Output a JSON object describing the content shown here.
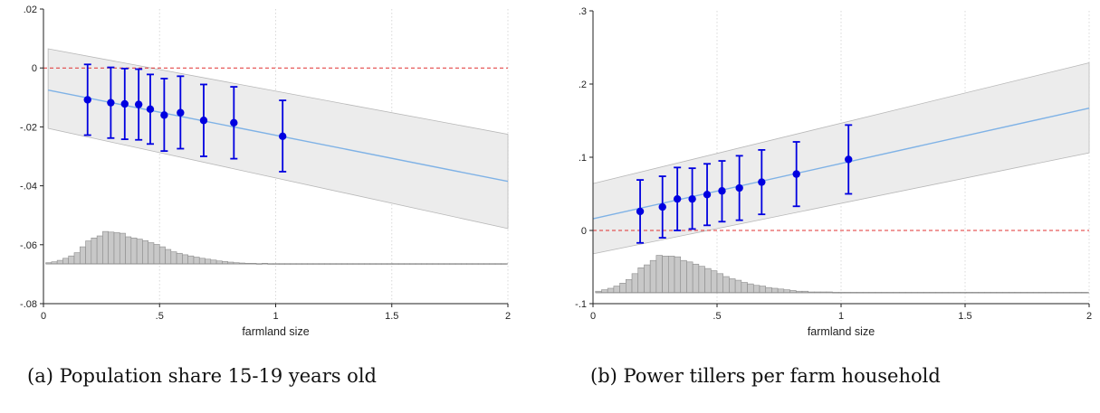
{
  "captions": [
    "(a) Population share 15-19 years old",
    "(b) Power tillers per farm household"
  ],
  "chart_data": [
    {
      "type": "scatter",
      "caption": "(a) Population share 15-19 years old",
      "xlabel": "farmland size",
      "ylabel": "",
      "xlim": [
        0,
        2
      ],
      "ylim": [
        -0.08,
        0.02
      ],
      "xticks": [
        0,
        0.5,
        1,
        1.5,
        2
      ],
      "xtick_labels": [
        "0",
        ".5",
        "1",
        "1.5",
        "2"
      ],
      "yticks": [
        -0.08,
        -0.06,
        -0.04,
        -0.02,
        0,
        0.02
      ],
      "ytick_labels": [
        "-.08",
        "-.06",
        "-.04",
        "-.02",
        "0",
        ".02"
      ],
      "reference_line_y": 0,
      "fit_line": {
        "x": [
          0.02,
          2.0
        ],
        "y": [
          -0.0075,
          -0.0385
        ]
      },
      "confidence_band": {
        "x": [
          0.02,
          2.0
        ],
        "lower": [
          -0.0205,
          -0.0545
        ],
        "upper": [
          0.0065,
          -0.0225
        ]
      },
      "points": [
        {
          "x": 0.19,
          "y": -0.0108,
          "lo": -0.0228,
          "hi": 0.0012
        },
        {
          "x": 0.29,
          "y": -0.0118,
          "lo": -0.0238,
          "hi": 0.0002
        },
        {
          "x": 0.35,
          "y": -0.0122,
          "lo": -0.0242,
          "hi": -0.0002
        },
        {
          "x": 0.41,
          "y": -0.0124,
          "lo": -0.0244,
          "hi": -0.0004
        },
        {
          "x": 0.46,
          "y": -0.014,
          "lo": -0.0258,
          "hi": -0.0022
        },
        {
          "x": 0.52,
          "y": -0.016,
          "lo": -0.0282,
          "hi": -0.0036
        },
        {
          "x": 0.59,
          "y": -0.0152,
          "lo": -0.0274,
          "hi": -0.0028
        },
        {
          "x": 0.69,
          "y": -0.0178,
          "lo": -0.03,
          "hi": -0.0056
        },
        {
          "x": 0.82,
          "y": -0.0186,
          "lo": -0.0308,
          "hi": -0.0064
        },
        {
          "x": 1.03,
          "y": -0.0232,
          "lo": -0.0352,
          "hi": -0.011
        }
      ],
      "histogram": {
        "baseline": -0.0665,
        "bin_start": 0.01,
        "bin_width": 0.0245,
        "heights": [
          0.0004,
          0.0007,
          0.0012,
          0.0019,
          0.0027,
          0.0038,
          0.0058,
          0.0078,
          0.0088,
          0.0095,
          0.011,
          0.0108,
          0.0106,
          0.0104,
          0.0092,
          0.0088,
          0.0084,
          0.0079,
          0.0072,
          0.0066,
          0.0058,
          0.0049,
          0.0041,
          0.0036,
          0.0031,
          0.0027,
          0.0023,
          0.0019,
          0.0016,
          0.0013,
          0.001,
          0.0008,
          0.0006,
          0.0004,
          0.0003,
          0.0002,
          0.0002,
          0.0001,
          0.0002,
          0.0001,
          0.0001,
          0.0001,
          0.0001,
          0.0001,
          0.0001,
          0.0001,
          0.0001,
          0.0001,
          0.0001,
          0.0001,
          0.0001,
          0.0001,
          0.0001,
          0.0001,
          0.0001,
          0.0001,
          0.0001,
          0.0001,
          0.0001,
          0.0001,
          0.0001,
          0.0001,
          0.0001,
          0.0001,
          0.0001,
          0.0001,
          0.0001,
          0.0001,
          0.0001,
          0.0001,
          0.0001,
          0.0001,
          0.0001,
          0.0001,
          0.0001,
          0.0001,
          0.0001,
          0.0001,
          0.0001,
          0.0001,
          0.0001
        ]
      },
      "colors": {
        "points": "#0000e0",
        "fit": "#7fb2e6",
        "band": "#ececec",
        "reference": "#e03030",
        "hist": "#c8c8c8"
      }
    },
    {
      "type": "scatter",
      "caption": "(b) Power tillers per farm household",
      "xlabel": "farmland size",
      "ylabel": "",
      "xlim": [
        0,
        2
      ],
      "ylim": [
        -0.1,
        0.3
      ],
      "xticks": [
        0,
        0.5,
        1,
        1.5,
        2
      ],
      "xtick_labels": [
        "0",
        ".5",
        "1",
        "1.5",
        "2"
      ],
      "yticks": [
        -0.1,
        0,
        0.1,
        0.2,
        0.3
      ],
      "ytick_labels": [
        "-.1",
        "0",
        ".1",
        ".2",
        ".3"
      ],
      "reference_line_y": 0,
      "fit_line": {
        "x": [
          0.0,
          2.0
        ],
        "y": [
          0.016,
          0.167
        ]
      },
      "confidence_band": {
        "x": [
          0.0,
          2.0
        ],
        "lower": [
          -0.032,
          0.106
        ],
        "upper": [
          0.064,
          0.229
        ]
      },
      "points": [
        {
          "x": 0.19,
          "y": 0.026,
          "lo": -0.017,
          "hi": 0.069
        },
        {
          "x": 0.28,
          "y": 0.032,
          "lo": -0.01,
          "hi": 0.074
        },
        {
          "x": 0.34,
          "y": 0.043,
          "lo": 0.0,
          "hi": 0.086
        },
        {
          "x": 0.4,
          "y": 0.043,
          "lo": 0.002,
          "hi": 0.085
        },
        {
          "x": 0.46,
          "y": 0.049,
          "lo": 0.007,
          "hi": 0.091
        },
        {
          "x": 0.52,
          "y": 0.054,
          "lo": 0.012,
          "hi": 0.095
        },
        {
          "x": 0.59,
          "y": 0.058,
          "lo": 0.014,
          "hi": 0.102
        },
        {
          "x": 0.68,
          "y": 0.066,
          "lo": 0.022,
          "hi": 0.11
        },
        {
          "x": 0.82,
          "y": 0.077,
          "lo": 0.033,
          "hi": 0.121
        },
        {
          "x": 1.03,
          "y": 0.097,
          "lo": 0.05,
          "hi": 0.144
        }
      ],
      "histogram": {
        "baseline": -0.085,
        "bin_start": 0.01,
        "bin_width": 0.0245,
        "heights": [
          0.002,
          0.004,
          0.006,
          0.009,
          0.013,
          0.018,
          0.026,
          0.034,
          0.038,
          0.044,
          0.051,
          0.05,
          0.05,
          0.049,
          0.044,
          0.042,
          0.039,
          0.036,
          0.033,
          0.03,
          0.026,
          0.022,
          0.019,
          0.017,
          0.014,
          0.012,
          0.01,
          0.009,
          0.007,
          0.006,
          0.005,
          0.004,
          0.003,
          0.002,
          0.002,
          0.001,
          0.001,
          0.001,
          0.001,
          0.0005,
          0.0005,
          0.0005,
          0.0005,
          0.0005,
          0.0005,
          0.0005,
          0.0005,
          0.0005,
          0.0005,
          0.0005,
          0.0005,
          0.0005,
          0.0005,
          0.0005,
          0.0005,
          0.0005,
          0.0005,
          0.0005,
          0.0005,
          0.0005,
          0.0005,
          0.0005,
          0.0005,
          0.0005,
          0.0005,
          0.0005,
          0.0005,
          0.0005,
          0.0005,
          0.0005,
          0.0005,
          0.0005,
          0.0005,
          0.0005,
          0.0005,
          0.0005,
          0.0005,
          0.0005,
          0.0005,
          0.0005,
          0.0005
        ]
      },
      "colors": {
        "points": "#0000e0",
        "fit": "#7fb2e6",
        "band": "#ececec",
        "reference": "#e03030",
        "hist": "#c8c8c8"
      }
    }
  ]
}
